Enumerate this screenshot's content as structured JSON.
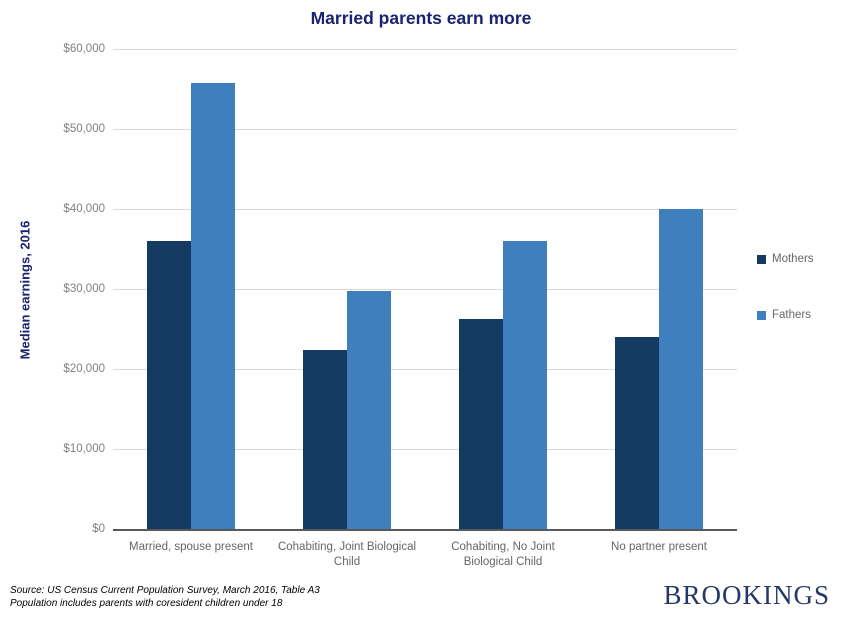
{
  "chart_data": {
    "type": "bar",
    "title": "Married parents earn more",
    "xlabel": "",
    "ylabel": "Median earnings, 2016",
    "ylim": [
      0,
      60000
    ],
    "ytick_step": 10000,
    "ytick_labels": [
      "$0",
      "$10,000",
      "$20,000",
      "$30,000",
      "$40,000",
      "$50,000",
      "$60,000"
    ],
    "grid": true,
    "legend_position": "right",
    "categories": [
      "Married, spouse present",
      "Cohabiting, Joint Biological Child",
      "Cohabiting, No Joint Biological Child",
      "No partner present"
    ],
    "series": [
      {
        "name": "Mothers",
        "color": "#143a62",
        "values": [
          36000,
          22400,
          26300,
          24000
        ]
      },
      {
        "name": "Fathers",
        "color": "#3f7fbd",
        "values": [
          55800,
          29700,
          36000,
          40000
        ]
      }
    ]
  },
  "footer": {
    "source_line1": "Source: US Census Current Population Survey, March 2016, Table A3",
    "source_line2": "Population includes parents with coresident children under 18",
    "brand": "BROOKINGS"
  },
  "colors": {
    "title_navy": "#1a236e",
    "gridline": "#d9d9d9",
    "axis_line": "#595959",
    "tick_text": "#7f7f7f",
    "category_text": "#666666",
    "brand_navy": "#253868"
  }
}
